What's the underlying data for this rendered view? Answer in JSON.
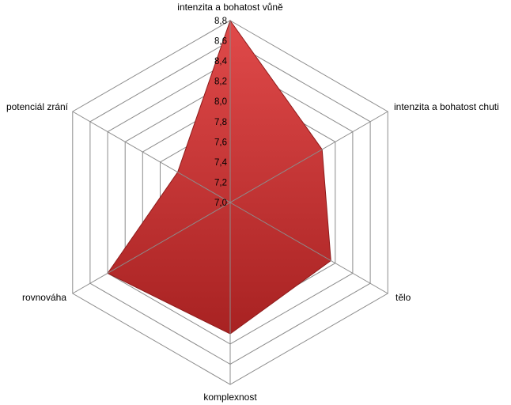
{
  "chart_data": {
    "type": "radar",
    "axes": [
      "intenzita a bohatost vůně",
      "intenzita a bohatost chuti",
      "tělo",
      "komplexnost",
      "rovnováha",
      "potenciál zrání"
    ],
    "tick_labels": [
      "7,0",
      "7,2",
      "7,4",
      "7,6",
      "7,8",
      "8,0",
      "8,2",
      "8,4",
      "8,6",
      "8,8"
    ],
    "rlim": [
      7.0,
      8.8
    ],
    "tick_step": 0.2,
    "series": [
      {
        "values": [
          8.8,
          8.05,
          8.15,
          8.3,
          8.4,
          7.6
        ]
      }
    ],
    "grid": true,
    "legend": "none",
    "colors": {
      "fill_light": "#e04a4a",
      "fill_dark": "#a82222",
      "stroke": "#8e1b1b",
      "grid": "#8c8c8c"
    }
  }
}
